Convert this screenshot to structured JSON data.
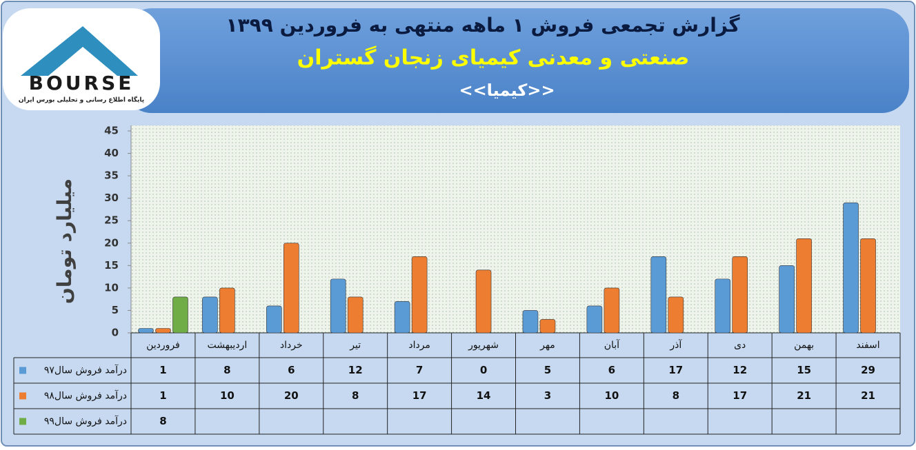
{
  "logo": {
    "name": "BOURSE",
    "tagline": "پایگاه اطلاع رسانی و تحلیلی بورس ایران"
  },
  "chart_data": {
    "type": "bar",
    "title": "گزارش تجمعی فروش ۱ ماهه منتهی به فروردین ۱۳۹۹",
    "subtitle": "صنعتی و معدنی کیمیای زنجان گستران",
    "symbol": "<<کیمیا>>",
    "y_label": "میلیارد تومان",
    "categories": [
      "فروردین",
      "اردیبهشت",
      "خرداد",
      "تیر",
      "مرداد",
      "شهریور",
      "مهر",
      "آبان",
      "آذر",
      "دی",
      "بهمن",
      "اسفند"
    ],
    "series": [
      {
        "name": "درآمد فروش سال۹۷",
        "color": "#5b9bd5",
        "values": [
          1,
          8,
          6,
          12,
          7,
          0,
          5,
          6,
          17,
          12,
          15,
          29
        ]
      },
      {
        "name": "درآمد فروش سال۹۸",
        "color": "#ed7d31",
        "values": [
          1,
          10,
          20,
          8,
          17,
          14,
          3,
          10,
          8,
          17,
          21,
          21
        ]
      },
      {
        "name": "درآمد فروش سال۹۹",
        "color": "#70ad47",
        "values": [
          8,
          null,
          null,
          null,
          null,
          null,
          null,
          null,
          null,
          null,
          null,
          null
        ]
      }
    ],
    "ylim": [
      0,
      45
    ],
    "yticks": [
      0,
      5,
      10,
      15,
      20,
      25,
      30,
      35,
      40,
      45
    ],
    "grid": false
  }
}
